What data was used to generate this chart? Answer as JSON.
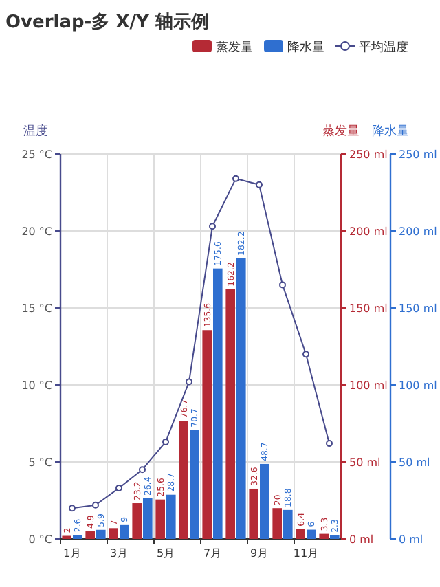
{
  "chart_data": {
    "type": "bar",
    "title": "Overlap-多 X/Y 轴示例",
    "categories": [
      "1月",
      null,
      "3月",
      null,
      "5月",
      null,
      "7月",
      null,
      "9月",
      null,
      "11月",
      null
    ],
    "series": [
      {
        "name": "蒸发量",
        "axis": "y2",
        "color": "#b52a35",
        "values": [
          2.0,
          4.9,
          7.0,
          23.2,
          25.6,
          76.7,
          135.6,
          162.2,
          32.6,
          20.0,
          6.4,
          3.3
        ],
        "value_labels": [
          "2",
          "4.9",
          "7",
          "23.2",
          "25.6",
          "76.7",
          "135.6",
          "162.2",
          "32.6",
          "20",
          "6.4",
          "3.3"
        ]
      },
      {
        "name": "降水量",
        "axis": "y3",
        "color": "#2f6fd0",
        "values": [
          2.6,
          5.9,
          9.0,
          26.4,
          28.7,
          70.7,
          175.6,
          182.2,
          48.7,
          18.8,
          6.0,
          2.3
        ],
        "value_labels": [
          "2.6",
          "5.9",
          "9",
          "26.4",
          "28.7",
          "70.7",
          "175.6",
          "182.2",
          "48.7",
          "18.8",
          "6",
          "2.3"
        ]
      },
      {
        "name": "平均温度",
        "type": "line",
        "axis": "y",
        "color": "#474a8c",
        "marker": "circle",
        "values": [
          2.0,
          2.2,
          3.3,
          4.5,
          6.3,
          10.2,
          20.3,
          23.4,
          23.0,
          16.5,
          12.0,
          6.2
        ]
      }
    ],
    "ylabel": "温度",
    "y2label": "蒸发量",
    "y3label": "降水量",
    "ylim": [
      0,
      25
    ],
    "yticks": [
      {
        "value": 0,
        "label": "0 °C"
      },
      {
        "value": 5,
        "label": "5 °C"
      },
      {
        "value": 10,
        "label": "10 °C"
      },
      {
        "value": 15,
        "label": "15 °C"
      },
      {
        "value": 20,
        "label": "20 °C"
      },
      {
        "value": 25,
        "label": "25 °C"
      }
    ],
    "y2lim": [
      0,
      250
    ],
    "y2ticks": [
      {
        "value": 0,
        "label": "0 ml"
      },
      {
        "value": 50,
        "label": "50 ml"
      },
      {
        "value": 100,
        "label": "100 ml"
      },
      {
        "value": 150,
        "label": "150 ml"
      },
      {
        "value": 200,
        "label": "200 ml"
      },
      {
        "value": 250,
        "label": "250 ml"
      }
    ],
    "y3lim": [
      0,
      250
    ],
    "y3ticks": [
      {
        "value": 0,
        "label": "0 ml"
      },
      {
        "value": 50,
        "label": "50 ml"
      },
      {
        "value": 100,
        "label": "100 ml"
      },
      {
        "value": 150,
        "label": "150 ml"
      },
      {
        "value": 200,
        "label": "200 ml"
      },
      {
        "value": 250,
        "label": "250 ml"
      }
    ],
    "grid": true,
    "legend": "top right"
  }
}
